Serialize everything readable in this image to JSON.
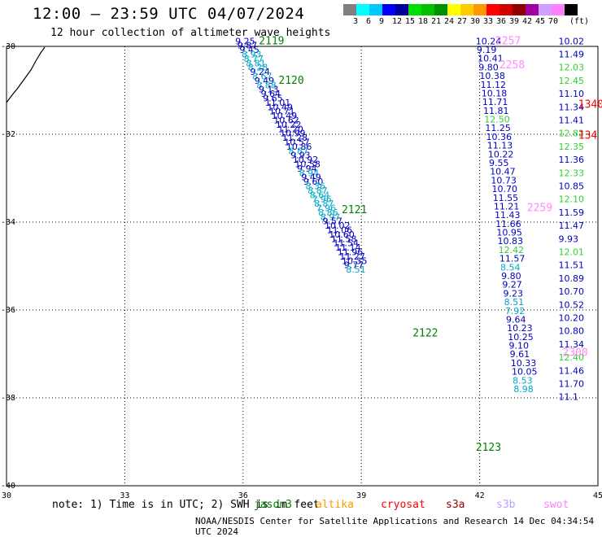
{
  "header": {
    "title": "12:00 – 23:59 UTC 04/07/2024",
    "subtitle": "12 hour collection of altimeter wave heights"
  },
  "legend": {
    "unit": "(ft)",
    "colors": [
      "#808080",
      "#00ffff",
      "#00c8ff",
      "#0000ff",
      "#00009a",
      "#00e000",
      "#00c000",
      "#009000",
      "#ffff00",
      "#ffcc00",
      "#ff9900",
      "#ff0000",
      "#d00000",
      "#900000",
      "#a000a0",
      "#d0a0ff",
      "#ff80ff",
      "#000000"
    ],
    "labels": [
      "3",
      "6",
      "9",
      "12",
      "15",
      "18",
      "21",
      "24",
      "27",
      "30",
      "33",
      "36",
      "39",
      "42",
      "45",
      "70"
    ]
  },
  "map": {
    "lon_ticks": [
      "30",
      "33",
      "36",
      "39",
      "42",
      "45"
    ],
    "lat_ticks": [
      "-30",
      "-32",
      "-34",
      "-36",
      "-38",
      "-40"
    ],
    "track_labels": [
      {
        "text": "2119",
        "color": "#008000",
        "lon": 36.4,
        "lat": -29.95
      },
      {
        "text": "2120",
        "color": "#008000",
        "lon": 36.9,
        "lat": -30.85
      },
      {
        "text": "2121",
        "color": "#008000",
        "lon": 38.5,
        "lat": -33.8
      },
      {
        "text": "2122",
        "color": "#008000",
        "lon": 40.3,
        "lat": -36.6
      },
      {
        "text": "2123",
        "color": "#008000",
        "lon": 41.9,
        "lat": -39.2
      },
      {
        "text": "2257",
        "color": "#ff88ff",
        "lon": 42.4,
        "lat": -29.95
      },
      {
        "text": "2258",
        "color": "#ff88ff",
        "lon": 42.5,
        "lat": -30.5
      },
      {
        "text": "2259",
        "color": "#ff88ff",
        "lon": 43.2,
        "lat": -33.75
      },
      {
        "text": "2300",
        "color": "#ff88ff",
        "lon": 44.1,
        "lat": -37.05
      },
      {
        "text": "1340",
        "color": "#ff0000",
        "lon": 44.5,
        "lat": -31.4
      },
      {
        "text": "134",
        "color": "#ff0000",
        "lon": 44.5,
        "lat": -32.1
      }
    ],
    "tracks": [
      {
        "name": "t1",
        "lon_start": 35.8,
        "lat_start": -29.95,
        "lon_step": 0.054,
        "lat_step": 0.1,
        "values": [
          "9.25",
          "9.87",
          "9.45",
          "8.93",
          "8.77",
          "8.81",
          "8.28",
          "9.24",
          "8.67",
          "9.49",
          "8.88",
          "9.13",
          "9.64",
          "9.65",
          "11.01",
          "10.49",
          "10.71",
          "10.49",
          "10.62",
          "10.22",
          "11.20",
          "10.99",
          "11.28",
          "10.57",
          "10.86",
          "8.87",
          "9.93",
          "10.92",
          "10.58",
          "9.94",
          "8.94",
          "9.49",
          "9.60",
          "8.36",
          "8.87",
          "8.64",
          "7.96",
          "8.87",
          "7.96",
          "8.86",
          "8.97",
          "9.57",
          "10.02",
          "11.06",
          "10.60",
          "11.58",
          "11.54",
          "11.14",
          "11.96",
          "11.27",
          "10.35",
          "9.77",
          "8.51"
        ]
      },
      {
        "name": "t2",
        "lon_start": 41.9,
        "lat_start": -29.95,
        "lon_step": 0.024,
        "lat_step": 0.198,
        "values": [
          "10.24",
          "9.19",
          "10.41",
          "9.80",
          "10.38",
          "11.12",
          "10.18",
          "11.71",
          "11.81",
          "12.50",
          "11.25",
          "10.36",
          "11.13",
          "10.22",
          "9.55",
          "10.47",
          "10.73",
          "10.70",
          "11.55",
          "11.21",
          "11.43",
          "11.66",
          "10.95",
          "10.83",
          "12.42",
          "11.57",
          "8.54",
          "9.80",
          "9.27",
          "9.23",
          "8.51",
          "7.92",
          "9.64",
          "10.23",
          "10.25",
          "9.10",
          "9.61",
          "10.33",
          "10.05",
          "8.53",
          "8.98"
        ]
      },
      {
        "name": "t3",
        "lon_start": 44.0,
        "lat_start": -29.95,
        "lon_step": 0.0,
        "lat_step": 0.3,
        "values": [
          "10.02",
          "11.49",
          "12.03",
          "12.45",
          "11.10",
          "11.34",
          "11.41",
          "12.82",
          "12.35",
          "11.36",
          "12.33",
          "10.85",
          "12.10",
          "11.59",
          "11.47",
          "9.93",
          "12.01",
          "11.51",
          "10.89",
          "10.70",
          "10.52",
          "10.20",
          "10.80",
          "11.34",
          "12.40",
          "11.46",
          "11.70",
          "11.1"
        ]
      }
    ],
    "track_colors": {
      "lt9": "#00a8c8",
      "lt12": "#0000c0",
      "lt15": "#00008a",
      "ge12": "#30d030"
    },
    "coast_color": "#000000"
  },
  "footer": {
    "note": "note: 1) Time is in UTC; 2) SWH is in feet",
    "satellites": [
      {
        "name": "jason3",
        "color": "#008000",
        "left": 312
      },
      {
        "name": "altika",
        "color": "#ff9900",
        "left": 388
      },
      {
        "name": "cryosat",
        "color": "#ff0000",
        "left": 468
      },
      {
        "name": "s3a",
        "color": "#900000",
        "left": 548
      },
      {
        "name": "s3b",
        "color": "#c0a0ff",
        "left": 610
      },
      {
        "name": "swot",
        "color": "#ff80ff",
        "left": 668
      }
    ],
    "credit": "NOAA/NESDIS Center for Satellite Applications and Research    14 Dec 04:34:54 UTC 2024"
  }
}
